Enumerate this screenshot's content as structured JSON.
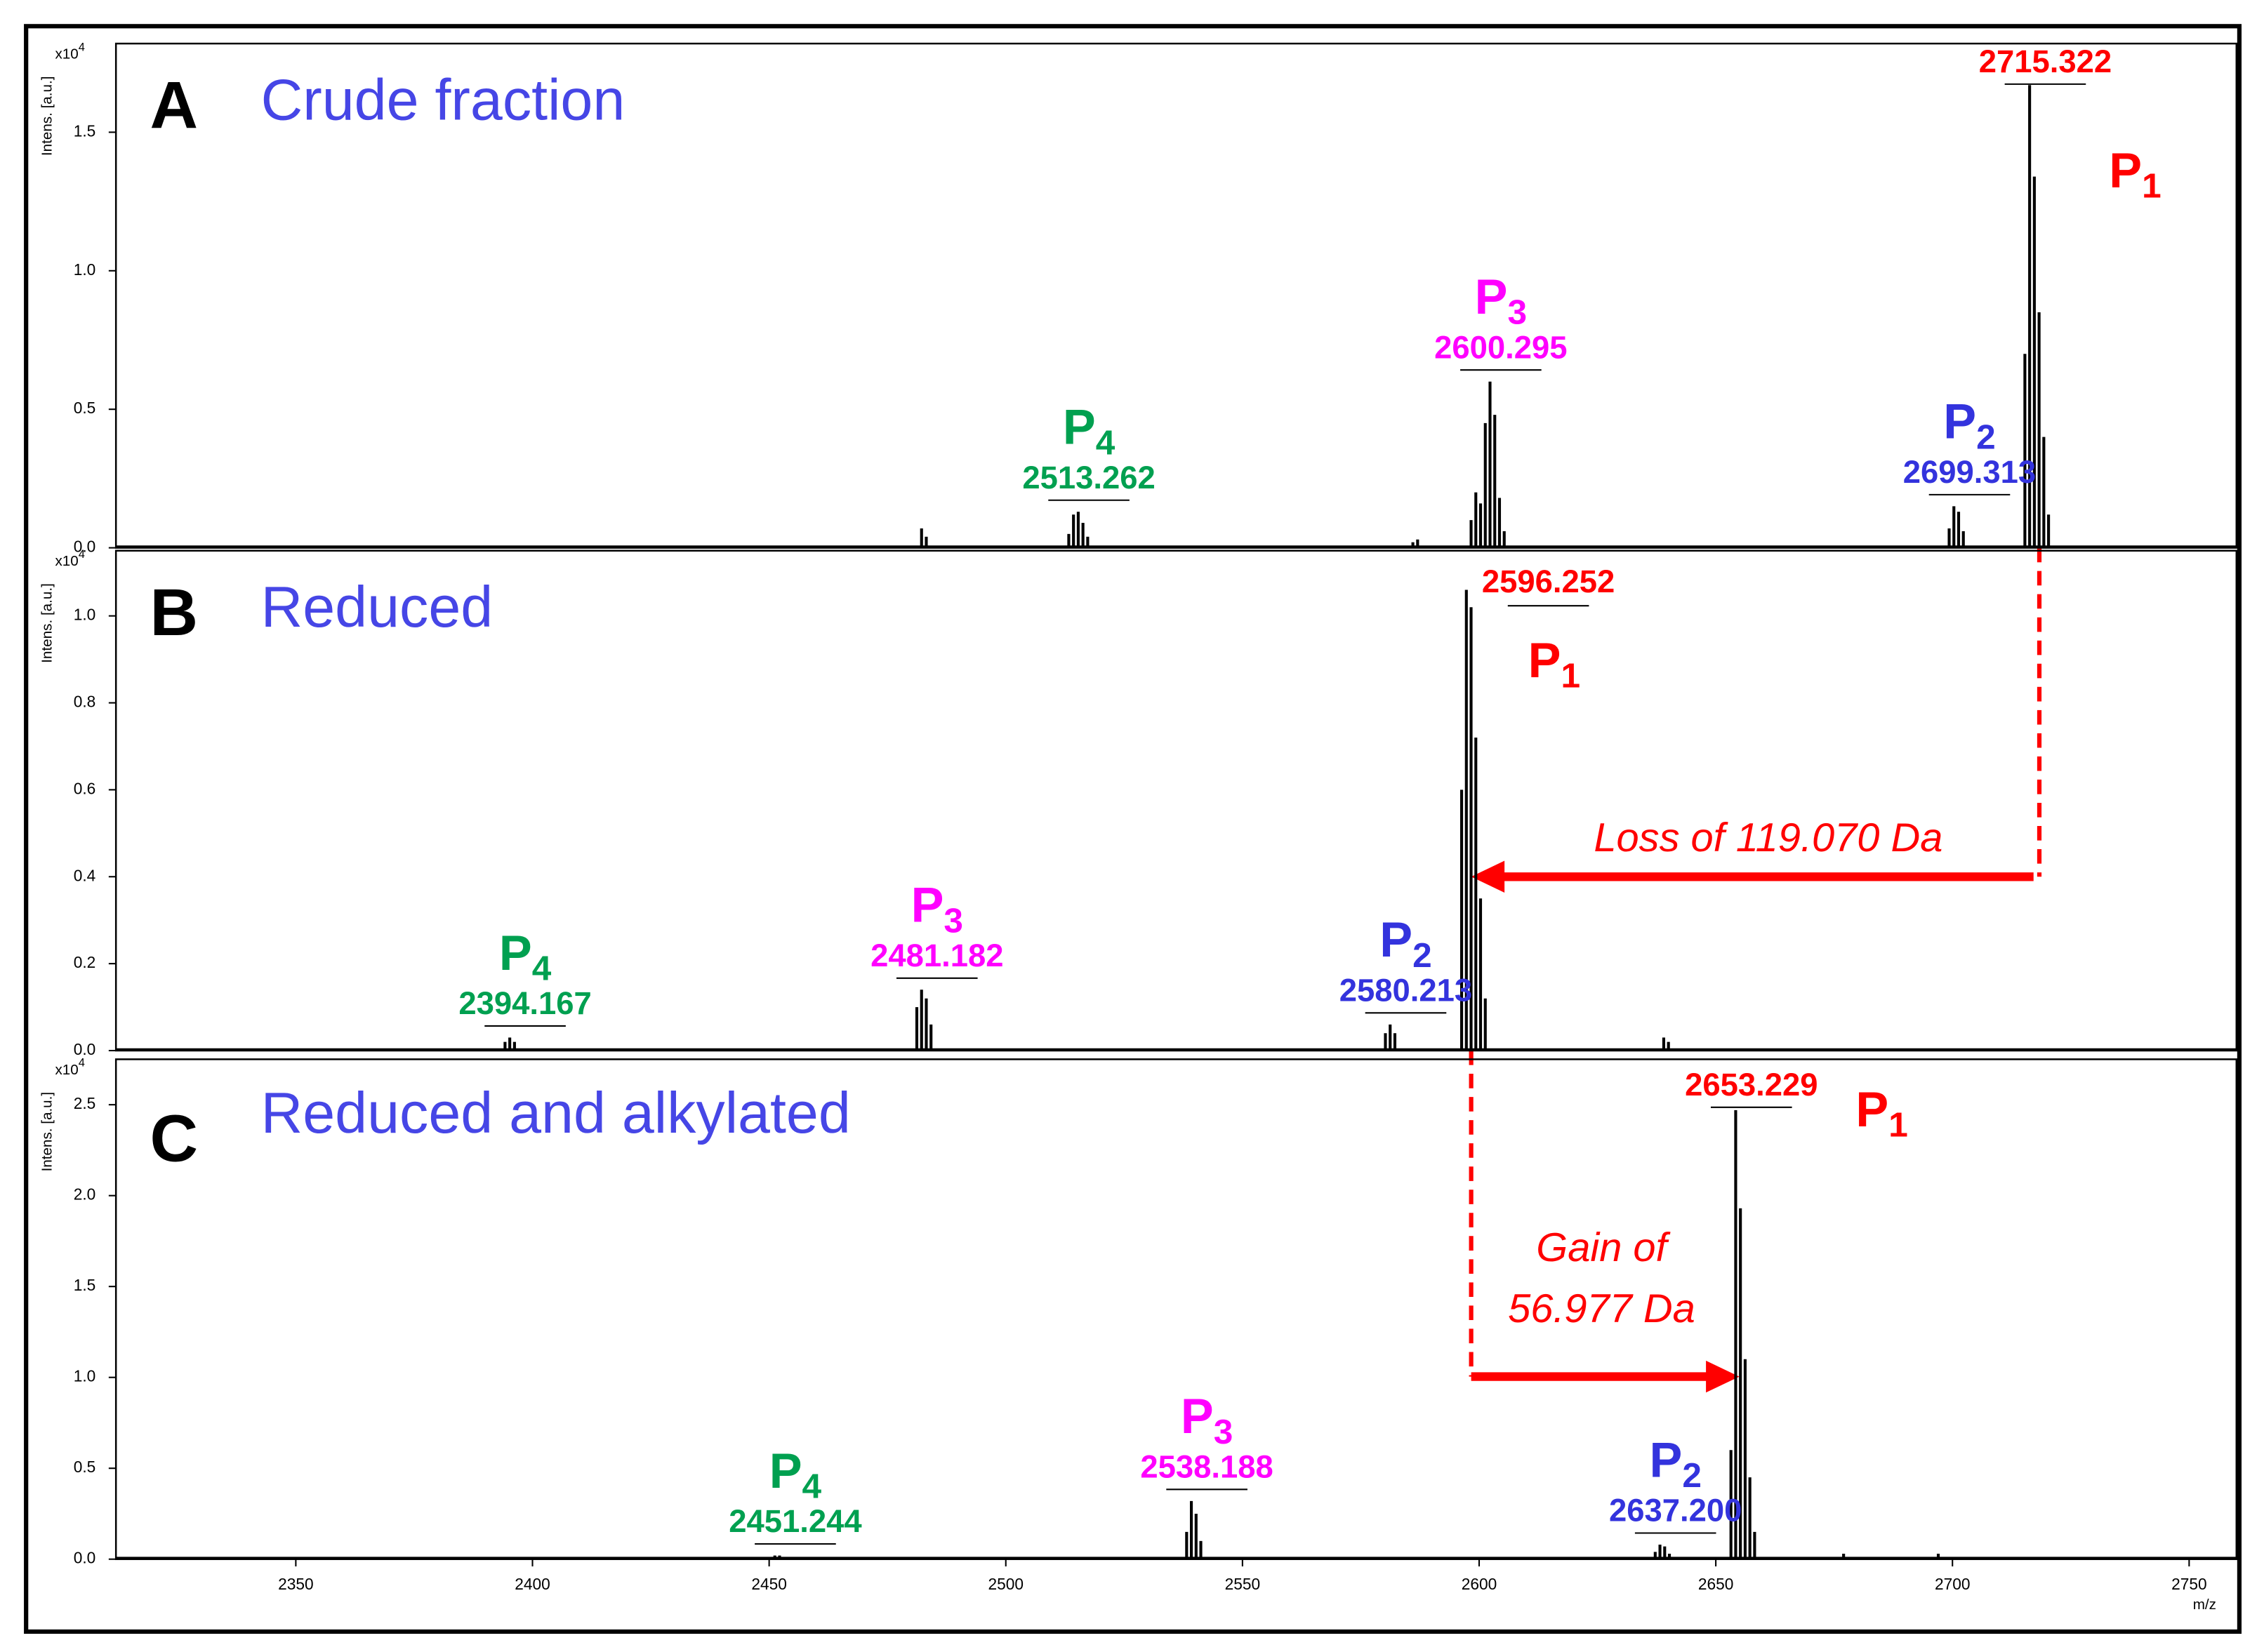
{
  "chart_data": [
    {
      "type": "spectrum",
      "panel": "A",
      "title": "Crude fraction",
      "ylabel": "Intens. [a.u.]",
      "y_scale": "x10",
      "y_scale_exp": "4",
      "xlim": [
        2312,
        2760
      ],
      "ylim": [
        0,
        1.82
      ],
      "yticks": [
        {
          "value": 0,
          "label": "0.0"
        },
        0.5,
        {
          "value": 1,
          "label": "1.0"
        },
        1.5
      ],
      "color": "#000000",
      "x": [
        2482.2,
        2483.2,
        2513.3,
        2514.3,
        2515.3,
        2516.3,
        2517.3,
        2586,
        2587,
        2598.3,
        2599.3,
        2600.3,
        2601.3,
        2602.3,
        2603.3,
        2604.3,
        2605.3,
        2699.3,
        2700.3,
        2701.3,
        2702.3,
        2715.3,
        2716.3,
        2717.3,
        2718.3,
        2719.3,
        2720.3
      ],
      "values": [
        0.07,
        0.04,
        0.05,
        0.12,
        0.13,
        0.09,
        0.04,
        0.02,
        0.03,
        0.1,
        0.2,
        0.16,
        0.45,
        0.6,
        0.48,
        0.18,
        0.06,
        0.07,
        0.15,
        0.13,
        0.06,
        0.7,
        1.67,
        1.34,
        0.85,
        0.4,
        0.12
      ],
      "annotations": [
        {
          "mz": 2715.322,
          "name": "P",
          "sub": "1",
          "color": "#ff0000"
        },
        {
          "mz": 2699.313,
          "name": "P",
          "sub": "2",
          "color": "#3333dd"
        },
        {
          "mz": 2600.295,
          "name": "P",
          "sub": "3",
          "color": "#ff00ff"
        },
        {
          "mz": 2513.262,
          "name": "P",
          "sub": "4",
          "color": "#00a050"
        }
      ]
    },
    {
      "type": "spectrum",
      "panel": "B",
      "title": "Reduced",
      "ylabel": "Intens. [a.u.]",
      "y_scale": "x10",
      "y_scale_exp": "4",
      "xlim": [
        2312,
        2760
      ],
      "ylim": [
        0,
        1.15
      ],
      "yticks": [
        {
          "value": 0,
          "label": "0.0"
        },
        0.2,
        0.4,
        0.6,
        0.8,
        {
          "value": 1,
          "label": "1.0"
        }
      ],
      "color": "#000000",
      "x": [
        2394.2,
        2395.2,
        2396.2,
        2481.2,
        2482.2,
        2483.2,
        2484.2,
        2580.2,
        2581.2,
        2582.2,
        2596.3,
        2597.3,
        2598.3,
        2599.3,
        2600.3,
        2601.3,
        2639,
        2640
      ],
      "values": [
        0.02,
        0.03,
        0.02,
        0.1,
        0.14,
        0.12,
        0.06,
        0.04,
        0.06,
        0.04,
        0.6,
        1.06,
        1.02,
        0.72,
        0.35,
        0.12,
        0.03,
        0.02
      ],
      "annotations": [
        {
          "mz": 2596.252,
          "name": "P",
          "sub": "1",
          "color": "#ff0000"
        },
        {
          "mz": 2580.213,
          "name": "P",
          "sub": "2",
          "color": "#3333dd"
        },
        {
          "mz": 2481.182,
          "name": "P",
          "sub": "3",
          "color": "#ff00ff"
        },
        {
          "mz": 2394.167,
          "name": "P",
          "sub": "4",
          "color": "#00a050"
        }
      ],
      "arrow_label": "Loss of 119.070 Da"
    },
    {
      "type": "spectrum",
      "panel": "C",
      "title": "Reduced and alkylated",
      "ylabel": "Intens. [a.u.]",
      "y_scale": "x10",
      "y_scale_exp": "4",
      "xlim": [
        2312,
        2760
      ],
      "ylim": [
        0,
        2.75
      ],
      "yticks": [
        {
          "value": 0,
          "label": "0.0"
        },
        0.5,
        {
          "value": 1,
          "label": "1.0"
        },
        1.5,
        {
          "value": 2,
          "label": "2.0"
        },
        2.5
      ],
      "xticks": [
        2350,
        2400,
        2450,
        2500,
        2550,
        2600,
        2650,
        2700,
        2750
      ],
      "xlabel": "m/z",
      "color": "#000000",
      "x": [
        2451.2,
        2452.2,
        2538.2,
        2539.2,
        2540.2,
        2541.2,
        2637.2,
        2638.2,
        2639.2,
        2640.2,
        2653.2,
        2654.2,
        2655.2,
        2656.2,
        2657.2,
        2658.2,
        2677,
        2697
      ],
      "values": [
        0.02,
        0.02,
        0.15,
        0.32,
        0.25,
        0.1,
        0.04,
        0.08,
        0.07,
        0.03,
        0.6,
        2.47,
        1.93,
        1.1,
        0.45,
        0.15,
        0.03,
        0.03
      ],
      "annotations": [
        {
          "mz": 2653.229,
          "name": "P",
          "sub": "1",
          "color": "#ff0000"
        },
        {
          "mz": {
            "value": 2637.2,
            "label": "2637.200"
          },
          "name": "P",
          "sub": "2",
          "color": "#3333dd"
        },
        {
          "mz": 2538.188,
          "name": "P",
          "sub": "3",
          "color": "#ff00ff"
        },
        {
          "mz": 2451.244,
          "name": "P",
          "sub": "4",
          "color": "#00a050"
        }
      ],
      "arrow_label": [
        "Gain of",
        "56.977 Da"
      ]
    }
  ]
}
